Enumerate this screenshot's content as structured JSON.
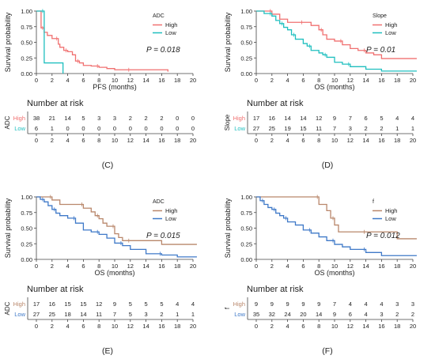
{
  "figure": {
    "panels": [
      "C",
      "D",
      "E",
      "F"
    ]
  },
  "chart_data": [
    {
      "panel_id": "C",
      "panel_label": "(C)",
      "type": "line",
      "xlabel": "PFS (months)",
      "ylabel": "Survival probability",
      "xlim": [
        0,
        20
      ],
      "ylim": [
        0,
        1
      ],
      "x_ticks": [
        "0",
        "2",
        "4",
        "6",
        "8",
        "10",
        "12",
        "14",
        "16",
        "18",
        "20"
      ],
      "y_ticks": [
        "0.00",
        "0.25",
        "0.50",
        "0.75",
        "1.00"
      ],
      "legend_title": "ADC",
      "legend_position": "top-right",
      "pvalue_text": "P = 0.018",
      "series": [
        {
          "name": "High",
          "color": "#f07070",
          "x": [
            0,
            0.6,
            1.0,
            1.4,
            2.0,
            2.8,
            3.0,
            3.5,
            4.0,
            4.6,
            5.0,
            5.5,
            6.0,
            7.0,
            8.0,
            9.0,
            10.0,
            12.0,
            14.0,
            16.6,
            16.8
          ],
          "y": [
            1.0,
            0.73,
            0.66,
            0.61,
            0.56,
            0.47,
            0.42,
            0.37,
            0.35,
            0.3,
            0.2,
            0.17,
            0.13,
            0.12,
            0.1,
            0.08,
            0.06,
            0.06,
            0.06,
            0.06,
            0.03
          ]
        },
        {
          "name": "Low",
          "color": "#1fbfbf",
          "x": [
            0,
            0.9,
            1.0,
            3.2,
            3.4
          ],
          "y": [
            1.0,
            1.0,
            0.17,
            0.17,
            0.0
          ]
        }
      ],
      "risk_table": {
        "title": "Number at risk",
        "label": "ADC",
        "rows": [
          {
            "name": "High",
            "color": "#f07070",
            "values": [
              "38",
              "21",
              "14",
              "5",
              "3",
              "3",
              "2",
              "2",
              "2",
              "0",
              "0"
            ]
          },
          {
            "name": "Low",
            "color": "#1fbfbf",
            "values": [
              "6",
              "1",
              "0",
              "0",
              "0",
              "0",
              "0",
              "0",
              "0",
              "0",
              "0"
            ]
          }
        ],
        "x_ticks": [
          "0",
          "2",
          "4",
          "6",
          "8",
          "10",
          "12",
          "14",
          "16",
          "18",
          "20"
        ]
      }
    },
    {
      "panel_id": "D",
      "panel_label": "(D)",
      "type": "line",
      "xlabel": "OS (months)",
      "ylabel": "Survival probability",
      "xlim": [
        0,
        20
      ],
      "ylim": [
        0,
        1
      ],
      "x_ticks": [
        "0",
        "2",
        "4",
        "6",
        "8",
        "10",
        "12",
        "14",
        "16",
        "18",
        "20"
      ],
      "y_ticks": [
        "0.00",
        "0.25",
        "0.50",
        "0.75",
        "1.00"
      ],
      "legend_title": "Slope",
      "legend_position": "top-right",
      "pvalue_text": "P = 0.01",
      "series": [
        {
          "name": "High",
          "color": "#f07070",
          "x": [
            0,
            1.5,
            2.0,
            3.0,
            4.0,
            6.0,
            7.0,
            8.0,
            8.5,
            9.0,
            10.0,
            11.0,
            12.0,
            13.0,
            14.0,
            15.0,
            16.0,
            21.0
          ],
          "y": [
            1.0,
            1.0,
            0.95,
            0.87,
            0.82,
            0.82,
            0.77,
            0.7,
            0.62,
            0.55,
            0.52,
            0.46,
            0.4,
            0.37,
            0.33,
            0.3,
            0.24,
            0.24
          ]
        },
        {
          "name": "Low",
          "color": "#1fbfbf",
          "x": [
            0,
            1.0,
            2.0,
            2.5,
            3.0,
            3.5,
            4.0,
            4.5,
            5.0,
            6.0,
            6.5,
            7.0,
            8.0,
            8.5,
            9.0,
            10.0,
            11.0,
            12.0,
            14.0,
            16.0,
            21.0
          ],
          "y": [
            1.0,
            0.96,
            0.92,
            0.85,
            0.8,
            0.74,
            0.7,
            0.62,
            0.55,
            0.48,
            0.44,
            0.37,
            0.33,
            0.3,
            0.26,
            0.18,
            0.15,
            0.11,
            0.07,
            0.04,
            0.04
          ]
        }
      ],
      "risk_table": {
        "title": "Number at risk",
        "label": "Slope",
        "rows": [
          {
            "name": "High",
            "color": "#f07070",
            "values": [
              "17",
              "16",
              "14",
              "14",
              "12",
              "9",
              "7",
              "6",
              "5",
              "4",
              "4"
            ]
          },
          {
            "name": "Low",
            "color": "#1fbfbf",
            "values": [
              "27",
              "25",
              "19",
              "15",
              "11",
              "7",
              "3",
              "2",
              "2",
              "1",
              "1"
            ]
          }
        ],
        "x_ticks": [
          "0",
          "2",
          "4",
          "6",
          "8",
          "10",
          "12",
          "14",
          "16",
          "18",
          "20"
        ]
      }
    },
    {
      "panel_id": "E",
      "panel_label": "(E)",
      "type": "line",
      "xlabel": "OS (months)",
      "ylabel": "Survival probability",
      "xlim": [
        0,
        20
      ],
      "ylim": [
        0,
        1
      ],
      "x_ticks": [
        "0",
        "2",
        "4",
        "6",
        "8",
        "10",
        "12",
        "14",
        "16",
        "18",
        "20"
      ],
      "y_ticks": [
        "0.00",
        "0.25",
        "0.50",
        "0.75",
        "1.00"
      ],
      "legend_title": "ADC",
      "legend_position": "top-right",
      "pvalue_text": "P = 0.015",
      "series": [
        {
          "name": "High",
          "color": "#b9876b",
          "x": [
            0,
            1.5,
            2.0,
            3.0,
            4.0,
            6.0,
            7.0,
            7.5,
            8.0,
            8.5,
            9.0,
            10.0,
            10.5,
            11.0,
            12.0,
            16.0,
            21.0
          ],
          "y": [
            1.0,
            1.0,
            0.95,
            0.88,
            0.88,
            0.82,
            0.76,
            0.7,
            0.65,
            0.58,
            0.53,
            0.41,
            0.35,
            0.3,
            0.3,
            0.24,
            0.24
          ]
        },
        {
          "name": "Low",
          "color": "#3f79c8",
          "x": [
            0,
            0.5,
            1.0,
            1.5,
            2.0,
            2.5,
            3.0,
            4.0,
            5.0,
            6.0,
            7.0,
            8.0,
            9.0,
            10.0,
            11.0,
            12.0,
            14.0,
            16.0,
            18.0,
            21.0
          ],
          "y": [
            1.0,
            0.96,
            0.92,
            0.86,
            0.8,
            0.74,
            0.7,
            0.66,
            0.58,
            0.47,
            0.44,
            0.4,
            0.34,
            0.26,
            0.22,
            0.16,
            0.09,
            0.07,
            0.04,
            0.04
          ]
        }
      ],
      "risk_table": {
        "title": "Number at risk",
        "label": "ADC",
        "rows": [
          {
            "name": "High",
            "color": "#b9876b",
            "values": [
              "17",
              "16",
              "15",
              "15",
              "12",
              "9",
              "5",
              "5",
              "5",
              "4",
              "4"
            ]
          },
          {
            "name": "Low",
            "color": "#3f79c8",
            "values": [
              "27",
              "25",
              "18",
              "14",
              "11",
              "7",
              "5",
              "3",
              "2",
              "1",
              "1"
            ]
          }
        ],
        "x_ticks": [
          "0",
          "2",
          "4",
          "6",
          "8",
          "10",
          "12",
          "14",
          "16",
          "18",
          "20"
        ]
      }
    },
    {
      "panel_id": "F",
      "panel_label": "(F)",
      "type": "line",
      "xlabel": "OS (months)",
      "ylabel": "Survival probability",
      "xlim": [
        0,
        20
      ],
      "ylim": [
        0,
        1
      ],
      "x_ticks": [
        "0",
        "2",
        "4",
        "6",
        "8",
        "10",
        "12",
        "14",
        "16",
        "18",
        "20"
      ],
      "y_ticks": [
        "0.00",
        "0.25",
        "0.50",
        "0.75",
        "1.00"
      ],
      "legend_title": "f",
      "legend_position": "top-right",
      "pvalue_text": "P = 0.012",
      "series": [
        {
          "name": "High",
          "color": "#b9876b",
          "x": [
            0,
            6.0,
            8.0,
            9.0,
            9.5,
            10.0,
            10.5,
            11.5,
            14.0,
            18.0,
            21.0
          ],
          "y": [
            1.0,
            1.0,
            0.88,
            0.78,
            0.66,
            0.55,
            0.44,
            0.44,
            0.44,
            0.33,
            0.33
          ]
        },
        {
          "name": "Low",
          "color": "#3f79c8",
          "x": [
            0,
            0.5,
            1.0,
            1.5,
            2.0,
            2.5,
            3.0,
            3.5,
            4.0,
            5.0,
            6.0,
            7.0,
            8.0,
            9.0,
            10.0,
            11.0,
            12.0,
            14.0,
            16.0,
            21.0
          ],
          "y": [
            1.0,
            0.94,
            0.88,
            0.83,
            0.8,
            0.74,
            0.7,
            0.66,
            0.6,
            0.55,
            0.47,
            0.42,
            0.36,
            0.3,
            0.24,
            0.2,
            0.16,
            0.11,
            0.06,
            0.06
          ]
        }
      ],
      "risk_table": {
        "title": "Number at risk",
        "label": "f",
        "rows": [
          {
            "name": "High",
            "color": "#b9876b",
            "values": [
              "9",
              "9",
              "9",
              "9",
              "9",
              "7",
              "4",
              "4",
              "4",
              "3",
              "3"
            ]
          },
          {
            "name": "Low",
            "color": "#3f79c8",
            "values": [
              "35",
              "32",
              "24",
              "20",
              "14",
              "9",
              "6",
              "4",
              "3",
              "2",
              "2"
            ]
          }
        ],
        "x_ticks": [
          "0",
          "2",
          "4",
          "6",
          "8",
          "10",
          "12",
          "14",
          "16",
          "18",
          "20"
        ]
      }
    }
  ]
}
